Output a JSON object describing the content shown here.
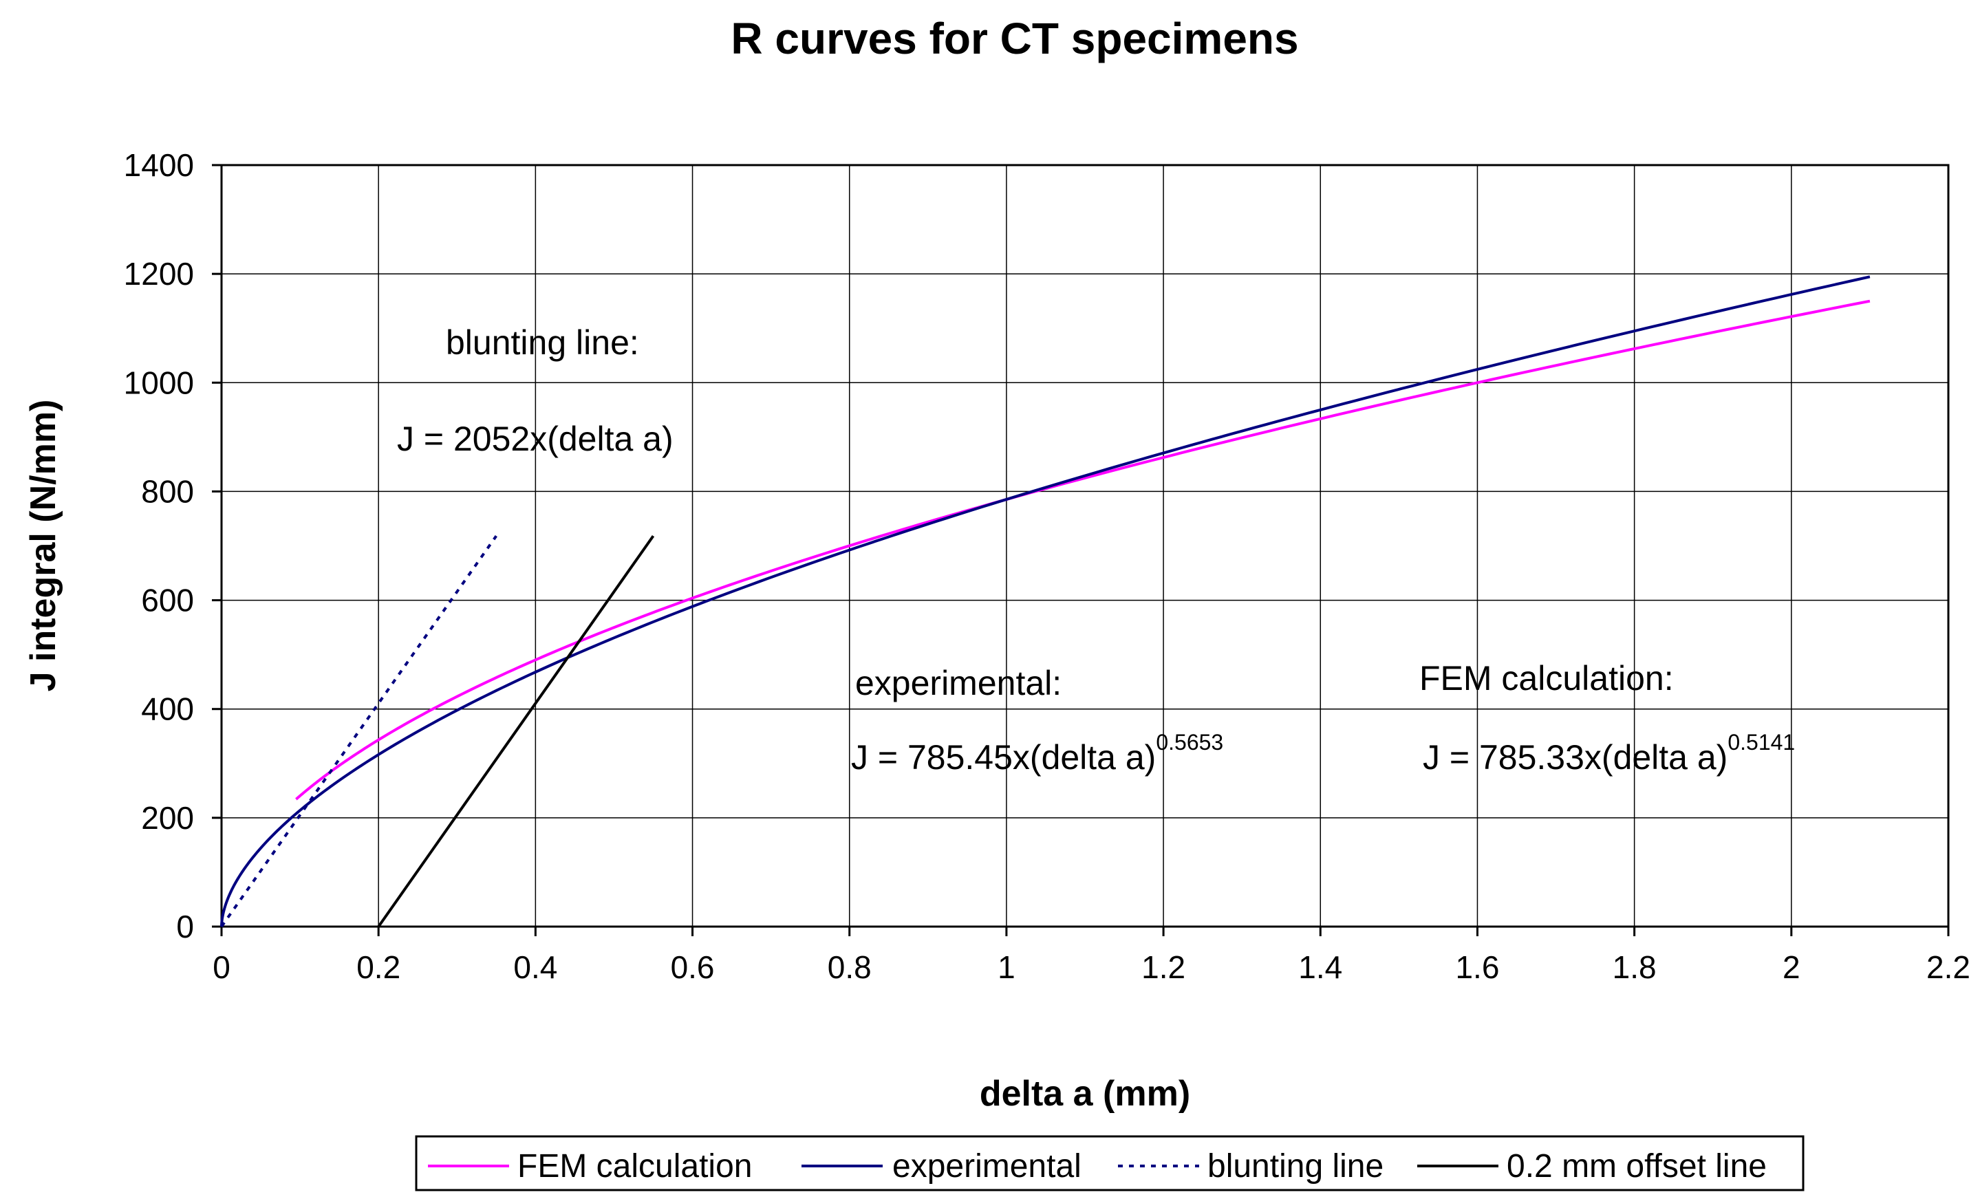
{
  "chart_data": {
    "type": "line",
    "title": "R curves for CT specimens",
    "xlabel": "delta a (mm)",
    "ylabel": "J integral (N/mm)",
    "xlim": [
      0,
      2.2
    ],
    "ylim": [
      0,
      1400
    ],
    "xticks": [
      "0",
      "0.2",
      "0.4",
      "0.6",
      "0.8",
      "1",
      "1.2",
      "1.4",
      "1.6",
      "1.8",
      "2",
      "2.2"
    ],
    "xtick_values": [
      0,
      0.2,
      0.4,
      0.6,
      0.8,
      1.0,
      1.2,
      1.4,
      1.6,
      1.8,
      2.0,
      2.2
    ],
    "yticks": [
      "0",
      "200",
      "400",
      "600",
      "800",
      "1000",
      "1200",
      "1400"
    ],
    "ytick_values": [
      0,
      200,
      400,
      600,
      800,
      1000,
      1200,
      1400
    ],
    "grid": true,
    "legend_position": "bottom",
    "series": [
      {
        "name": "FEM calculation",
        "color": "#ff00ff",
        "style": "solid",
        "coefficient": 785.33,
        "exponent": 0.5141,
        "x_range": [
          0.095,
          2.1
        ]
      },
      {
        "name": "experimental",
        "color": "#000080",
        "style": "solid",
        "coefficient": 785.45,
        "exponent": 0.5653,
        "x_range": [
          0,
          2.1
        ]
      },
      {
        "name": "blunting line",
        "color": "#000080",
        "style": "dotted",
        "x": [
          0,
          0.35
        ],
        "y": [
          0,
          718.2
        ]
      },
      {
        "name": "0.2 mm offset line",
        "color": "#000000",
        "style": "solid",
        "x": [
          0.2,
          0.55
        ],
        "y": [
          0,
          718.2
        ]
      }
    ],
    "annotations": [
      {
        "id": "blunting-label",
        "text": "blunting line:"
      },
      {
        "id": "blunting-eq",
        "text": "J = 2052x(delta a)"
      },
      {
        "id": "exp-label",
        "text": "experimental:"
      },
      {
        "id": "exp-eq",
        "text": "J = 785.45x(delta a)",
        "superscript": "0.5653"
      },
      {
        "id": "fem-label",
        "text": "FEM calculation:"
      },
      {
        "id": "fem-eq",
        "text": "J = 785.33x(delta a)",
        "superscript": "0.5141"
      }
    ]
  }
}
